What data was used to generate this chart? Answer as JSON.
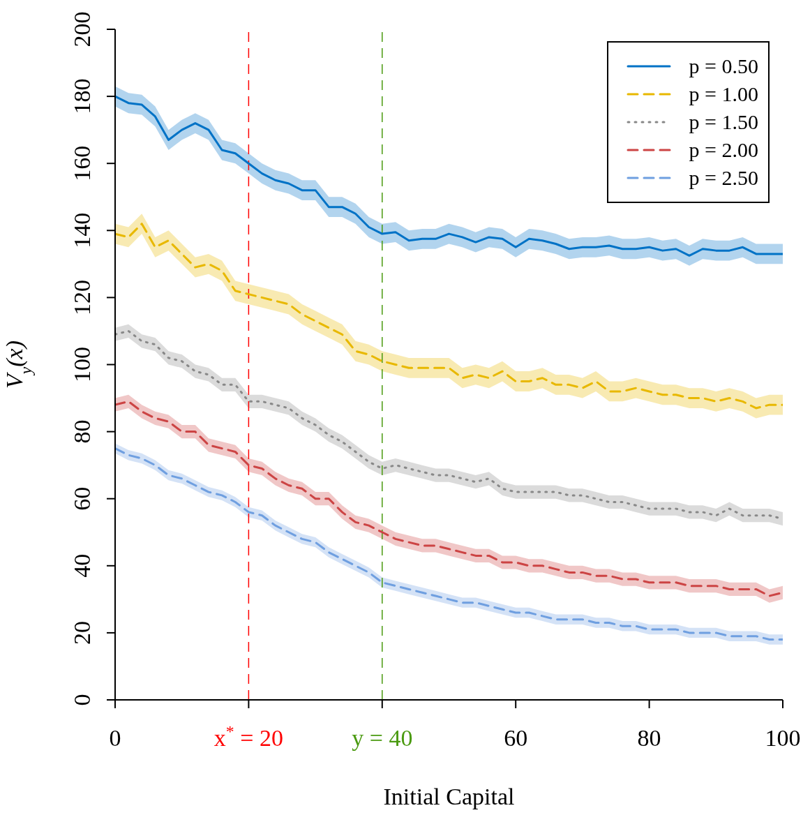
{
  "chart_data": {
    "type": "line",
    "xlabel": "Initial Capital",
    "ylabel": "V$_{y}$(x)",
    "x": [
      0,
      2,
      4,
      6,
      8,
      10,
      12,
      14,
      16,
      18,
      20,
      22,
      24,
      26,
      28,
      30,
      32,
      34,
      36,
      38,
      40,
      42,
      44,
      46,
      48,
      50,
      52,
      54,
      56,
      58,
      60,
      62,
      64,
      66,
      68,
      70,
      72,
      74,
      76,
      78,
      80,
      82,
      84,
      86,
      88,
      90,
      92,
      94,
      96,
      98,
      100
    ],
    "xlim": [
      0,
      100
    ],
    "xticks": [
      0,
      {
        "value": 20,
        "label": "x$^{*}$ = 20"
      },
      {
        "value": 40,
        "label": "y = 40"
      },
      60,
      80,
      100
    ],
    "ylim": [
      0,
      200
    ],
    "yticks": [
      0,
      20,
      40,
      60,
      80,
      100,
      120,
      140,
      160,
      180,
      200
    ],
    "legend": "top right",
    "ref_lines": [
      {
        "axis": "x",
        "value": 20,
        "color": "#ff0000",
        "line_style": "dashed"
      },
      {
        "axis": "x",
        "value": 40,
        "color": "#4a9a10",
        "line_style": "dashed"
      }
    ],
    "series": [
      {
        "name": "p = 0.50",
        "color": "#0072c6",
        "line_style": "solid",
        "values": [
          180,
          178,
          177.5,
          174,
          167,
          170,
          172,
          170,
          164,
          163,
          160,
          157,
          155,
          154,
          152,
          152,
          147,
          147,
          145,
          141,
          139,
          139.5,
          137,
          137.5,
          137.5,
          139,
          138,
          136.5,
          138,
          137.5,
          135,
          137.5,
          137,
          136,
          134.5,
          135,
          135,
          135.5,
          134.5,
          134.5,
          135,
          134,
          134.5,
          132.5,
          134.5,
          134,
          134,
          135,
          133,
          133,
          133
        ],
        "lower": [
          177,
          175,
          174.5,
          171,
          164,
          167,
          169,
          167,
          161,
          160,
          157,
          154,
          152,
          151,
          149,
          149,
          144,
          144,
          142,
          138,
          136,
          136.5,
          134,
          134.5,
          134.5,
          136,
          135,
          133.5,
          135,
          134.5,
          132,
          134.5,
          134,
          133,
          131.5,
          132,
          132,
          132.5,
          131.5,
          131.5,
          132,
          131,
          131.5,
          129.5,
          131.5,
          131,
          131,
          132,
          130,
          130,
          130
        ],
        "upper": [
          183,
          181,
          180.5,
          177,
          170,
          173,
          175,
          173,
          167,
          166,
          163,
          160,
          158,
          157,
          155,
          155,
          150,
          150,
          148,
          144,
          142,
          142.5,
          140,
          140.5,
          140.5,
          142,
          141,
          139.5,
          141,
          140.5,
          138,
          140.5,
          140,
          139,
          137.5,
          138,
          138,
          138.5,
          137.5,
          137.5,
          138,
          137,
          137.5,
          135.5,
          137.5,
          137,
          137,
          138,
          136,
          136,
          136
        ]
      },
      {
        "name": "p = 1.00",
        "color": "#e8b800",
        "line_style": "dashed",
        "values": [
          139,
          138,
          142,
          135,
          137,
          133,
          129,
          130,
          128,
          122,
          121,
          120,
          119,
          118,
          115,
          113,
          111,
          109,
          104,
          103,
          101,
          100,
          99,
          99,
          99,
          99,
          96,
          97,
          96,
          98,
          95,
          95,
          96,
          94,
          94,
          93,
          95,
          92,
          92,
          93,
          92,
          91,
          91,
          90,
          90,
          89,
          90,
          89,
          87,
          88,
          88
        ],
        "lower": [
          136,
          135,
          139,
          132,
          134,
          130,
          126,
          127,
          125,
          119,
          118,
          117,
          116,
          115,
          112,
          110,
          108,
          106,
          101,
          100,
          98,
          97,
          96,
          96,
          96,
          96,
          93,
          94,
          93,
          95,
          92,
          92,
          93,
          91,
          91,
          90,
          92,
          89,
          89,
          90,
          89,
          88,
          88,
          87,
          87,
          86,
          87,
          86,
          84,
          85,
          85
        ],
        "upper": [
          142,
          141,
          145,
          138,
          140,
          136,
          132,
          133,
          131,
          125,
          124,
          123,
          122,
          121,
          118,
          116,
          114,
          112,
          107,
          106,
          104,
          103,
          102,
          102,
          102,
          102,
          99,
          100,
          99,
          101,
          98,
          98,
          99,
          97,
          97,
          96,
          98,
          95,
          95,
          96,
          95,
          94,
          94,
          93,
          93,
          92,
          93,
          92,
          90,
          91,
          91
        ]
      },
      {
        "name": "p = 1.50",
        "color": "#888888",
        "line_style": "dotted",
        "values": [
          109,
          110,
          107,
          106,
          102,
          101,
          98,
          97,
          94,
          94,
          89,
          89,
          88,
          87,
          84,
          82,
          79,
          77,
          74,
          71,
          69,
          70,
          69,
          68,
          67,
          67,
          66,
          65,
          66,
          63,
          62,
          62,
          62,
          62,
          61,
          61,
          60,
          59,
          59,
          58,
          57,
          57,
          57,
          56,
          56,
          55,
          57,
          55,
          55,
          55,
          54
        ],
        "lower": [
          107,
          108,
          105,
          104,
          100,
          99,
          96,
          95,
          92,
          92,
          87,
          87,
          86,
          85,
          82,
          80,
          77,
          75,
          72,
          69,
          67,
          68,
          67,
          66,
          65,
          65,
          64,
          63,
          64,
          61,
          60,
          60,
          60,
          60,
          59,
          59,
          58,
          57,
          57,
          56,
          55,
          55,
          55,
          54,
          54,
          53,
          55,
          53,
          53,
          53,
          52
        ],
        "upper": [
          111,
          112,
          109,
          108,
          104,
          103,
          100,
          99,
          96,
          96,
          91,
          91,
          90,
          89,
          86,
          84,
          81,
          79,
          76,
          73,
          71,
          72,
          71,
          70,
          69,
          69,
          68,
          67,
          68,
          65,
          64,
          64,
          64,
          64,
          63,
          63,
          62,
          61,
          61,
          60,
          59,
          59,
          59,
          58,
          58,
          57,
          59,
          57,
          57,
          57,
          56
        ]
      },
      {
        "name": "p = 2.00",
        "color": "#cc4444",
        "line_style": "dashed",
        "values": [
          88,
          89,
          86,
          84,
          83,
          80,
          80,
          76,
          75,
          74,
          70,
          69,
          66,
          64,
          63,
          60,
          60,
          56,
          53,
          52,
          50,
          48,
          47,
          46,
          46,
          45,
          44,
          43,
          43,
          41,
          41,
          40,
          40,
          39,
          38,
          38,
          37,
          37,
          36,
          36,
          35,
          35,
          35,
          34,
          34,
          34,
          33,
          33,
          33,
          31,
          32
        ],
        "lower": [
          86,
          87,
          84,
          82,
          81,
          78,
          78,
          74,
          73,
          72,
          68,
          67,
          64,
          62,
          61,
          58,
          58,
          54,
          51,
          50,
          48,
          46,
          45,
          44,
          44,
          43,
          42,
          41,
          41,
          39,
          39,
          38,
          38,
          37,
          36,
          36,
          35,
          35,
          34,
          34,
          33,
          33,
          33,
          32,
          32,
          32,
          31,
          31,
          31,
          29,
          30
        ],
        "upper": [
          90,
          91,
          88,
          86,
          85,
          82,
          82,
          78,
          77,
          76,
          72,
          71,
          68,
          66,
          65,
          62,
          62,
          58,
          55,
          54,
          52,
          50,
          49,
          48,
          48,
          47,
          46,
          45,
          45,
          43,
          43,
          42,
          42,
          41,
          40,
          40,
          39,
          39,
          38,
          38,
          37,
          37,
          37,
          36,
          36,
          36,
          35,
          35,
          35,
          33,
          34
        ]
      },
      {
        "name": "p = 2.50",
        "color": "#6f9fe0",
        "line_style": "dashed",
        "values": [
          75,
          73,
          72,
          70,
          67,
          66,
          64,
          62,
          61,
          59,
          56,
          55,
          52,
          50,
          48,
          47,
          44,
          42,
          40,
          38,
          35,
          34,
          33,
          32,
          31,
          30,
          29,
          29,
          28,
          27,
          26,
          26,
          25,
          24,
          24,
          24,
          23,
          23,
          22,
          22,
          21,
          21,
          21,
          20,
          20,
          20,
          19,
          19,
          19,
          18,
          18
        ],
        "lower": [
          73.5,
          71.5,
          70.5,
          68.5,
          65.5,
          64.5,
          62.5,
          60.5,
          59.5,
          57.5,
          54.5,
          53.5,
          50.5,
          48.5,
          46.5,
          45.5,
          42.5,
          40.5,
          38.5,
          36.5,
          33.5,
          32.5,
          31.5,
          30.5,
          29.5,
          28.5,
          27.5,
          27.5,
          26.5,
          25.5,
          24.5,
          24.5,
          23.5,
          22.5,
          22.5,
          22.5,
          21.5,
          21.5,
          20.5,
          20.5,
          19.5,
          19.5,
          19.5,
          18.5,
          18.5,
          18.5,
          17.5,
          17.5,
          17.5,
          16.5,
          16.5
        ],
        "upper": [
          76.5,
          74.5,
          73.5,
          71.5,
          68.5,
          67.5,
          65.5,
          63.5,
          62.5,
          60.5,
          57.5,
          56.5,
          53.5,
          51.5,
          49.5,
          48.5,
          45.5,
          43.5,
          41.5,
          39.5,
          36.5,
          35.5,
          34.5,
          33.5,
          32.5,
          31.5,
          30.5,
          30.5,
          29.5,
          28.5,
          27.5,
          27.5,
          26.5,
          25.5,
          25.5,
          25.5,
          24.5,
          24.5,
          23.5,
          23.5,
          22.5,
          22.5,
          22.5,
          21.5,
          21.5,
          21.5,
          20.5,
          20.5,
          20.5,
          19.5,
          19.5
        ]
      }
    ]
  }
}
